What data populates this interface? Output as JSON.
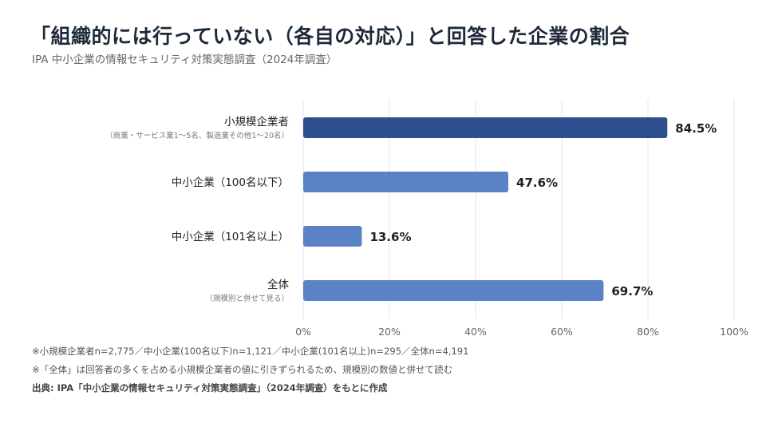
{
  "title": "「組織的には行っていない（各自の対応）」と回答した企業の割合",
  "subtitle": "IPA 中小企業の情報セキュリティ対策実態調査（2024年調査）",
  "chart_data": {
    "type": "bar",
    "orientation": "horizontal",
    "categories": [
      {
        "label": "小規模企業者",
        "sublabel": "（商業・サービス業1〜5名、製造業その他1〜20名）"
      },
      {
        "label": "中小企業（100名以下）",
        "sublabel": ""
      },
      {
        "label": "中小企業（101名以上）",
        "sublabel": ""
      },
      {
        "label": "全体",
        "sublabel": "（規模別と併せて見る）"
      }
    ],
    "values": [
      84.5,
      47.6,
      13.6,
      69.7
    ],
    "value_labels": [
      "84.5%",
      "47.6%",
      "13.6%",
      "69.7%"
    ],
    "bar_colors": [
      "#2d4f8e",
      "#5b82c5",
      "#5b82c5",
      "#5b82c5"
    ],
    "xlim": [
      0,
      100
    ],
    "xticks": [
      0,
      20,
      40,
      60,
      80,
      100
    ],
    "xtick_labels": [
      "0%",
      "20%",
      "40%",
      "60%",
      "80%",
      "100%"
    ],
    "grid": true,
    "legend": "none"
  },
  "notes": [
    "※小規模企業者n=2,775／中小企業(100名以下)n=1,121／中小企業(101名以上)n=295／全体n=4,191",
    "※「全体」は回答者の多くを占める小規模企業者の値に引きずられるため、規模別の数値と併せて読む"
  ],
  "source": "出典: IPA「中小企業の情報セキュリティ対策実態調査」（2024年調査）をもとに作成"
}
